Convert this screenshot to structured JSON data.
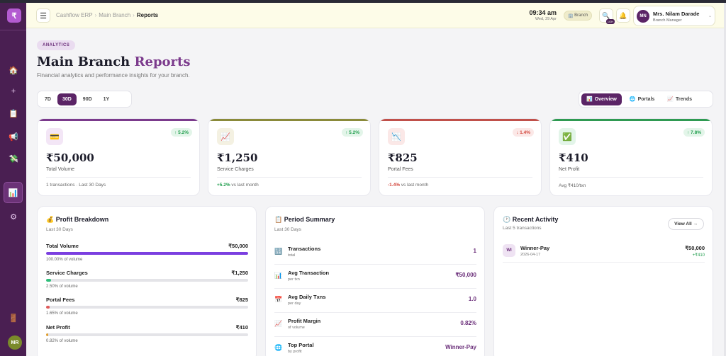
{
  "sidebar": {
    "logo": "₹",
    "avatar": "MR",
    "items": [
      {
        "icon": "home-icon",
        "glyph": "🏠"
      },
      {
        "icon": "plus-icon",
        "glyph": "+"
      },
      {
        "icon": "clipboard-icon",
        "glyph": "📋"
      },
      {
        "icon": "megaphone-icon",
        "glyph": "📢"
      },
      {
        "icon": "money-icon",
        "glyph": "💸"
      },
      {
        "icon": "chart-icon",
        "glyph": "📊",
        "active": true
      },
      {
        "icon": "gear-icon",
        "glyph": "⚙"
      },
      {
        "icon": "door-icon",
        "glyph": "🚪"
      }
    ]
  },
  "header": {
    "breadcrumb": [
      "Cashflow ERP",
      "Main Branch",
      "Reports"
    ],
    "time": "09:34 am",
    "date": "Wed, 29 Apr",
    "branch_label": "Branch",
    "badge": "1GH",
    "user": {
      "initials": "MN",
      "name": "Mrs. Nilam Darade",
      "role": "Branch Manager"
    }
  },
  "page": {
    "tag": "ANALYTICS",
    "title_main": "Main Branch ",
    "title_accent": "Reports",
    "subtitle": "Financial analytics and performance insights for your branch."
  },
  "ranges": [
    "7D",
    "30D",
    "90D",
    "1Y"
  ],
  "active_range": "30D",
  "views": [
    {
      "label": "Overview",
      "glyph": "📊",
      "active": true
    },
    {
      "label": "Portals",
      "glyph": "🌐",
      "active": false
    },
    {
      "label": "Trends",
      "glyph": "📈",
      "active": false
    }
  ],
  "kpis": [
    {
      "value": "₹50,000",
      "label": "Total Volume",
      "change": "↑ 5.2%",
      "trend": "up",
      "glyph": "💳",
      "color": "#7b3a8c",
      "icon_bg": "#f3e6f6",
      "foot": "1 transactions · Last 30 Days"
    },
    {
      "value": "₹1,250",
      "label": "Service Charges",
      "change": "↑ 5.2%",
      "trend": "up",
      "glyph": "📈",
      "color": "#8a8a3a",
      "icon_bg": "#f4f1e2",
      "foot_change": "+5.2%",
      "foot_rest": " vs last month"
    },
    {
      "value": "₹825",
      "label": "Portal Fees",
      "change": "↓ 1.4%",
      "trend": "down",
      "glyph": "📉",
      "color": "#c0504a",
      "icon_bg": "#fbe8e7",
      "foot_change": "-1.4%",
      "foot_rest": " vs last month"
    },
    {
      "value": "₹410",
      "label": "Net Profit",
      "change": "↑ 7.8%",
      "trend": "up",
      "glyph": "✅",
      "color": "#2f9a52",
      "icon_bg": "#e3f5e9",
      "foot": "Avg ₹410/txn"
    }
  ],
  "profit_breakdown": {
    "title": "💰 Profit Breakdown",
    "sub": "Last 30 Days",
    "rows": [
      {
        "name": "Total Volume",
        "value": "₹50,000",
        "pct_text": "100.00% of volume",
        "pct": 100,
        "color": "#7b3fe0"
      },
      {
        "name": "Service Charges",
        "value": "₹1,250",
        "pct_text": "2.50% of volume",
        "pct": 2.5,
        "color": "#2fbf7a"
      },
      {
        "name": "Portal Fees",
        "value": "₹825",
        "pct_text": "1.65% of volume",
        "pct": 1.65,
        "color": "#e05a5a"
      },
      {
        "name": "Net Profit",
        "value": "₹410",
        "pct_text": "0.82% of volume",
        "pct": 0.82,
        "color": "#e0a030"
      }
    ]
  },
  "period_summary": {
    "title": "📋 Period Summary",
    "sub": "Last 30 Days",
    "rows": [
      {
        "glyph": "🔢",
        "name": "Transactions",
        "sub": "total",
        "value": "1"
      },
      {
        "glyph": "📊",
        "name": "Avg Transaction",
        "sub": "per txn",
        "value": "₹50,000"
      },
      {
        "glyph": "📅",
        "name": "Avg Daily Txns",
        "sub": "per day",
        "value": "1.0"
      },
      {
        "glyph": "📈",
        "name": "Profit Margin",
        "sub": "of volume",
        "value": "0.82%"
      },
      {
        "glyph": "🌐",
        "name": "Top Portal",
        "sub": "by profit",
        "value": "Winner-Pay"
      }
    ]
  },
  "recent_activity": {
    "title": "🕐 Recent Activity",
    "sub": "Last 5 transactions",
    "view_all": "View All →",
    "items": [
      {
        "initials": "WI",
        "name": "Winner-Pay",
        "date": "2026-04-17",
        "amount": "₹50,000",
        "profit": "+₹410"
      }
    ]
  }
}
